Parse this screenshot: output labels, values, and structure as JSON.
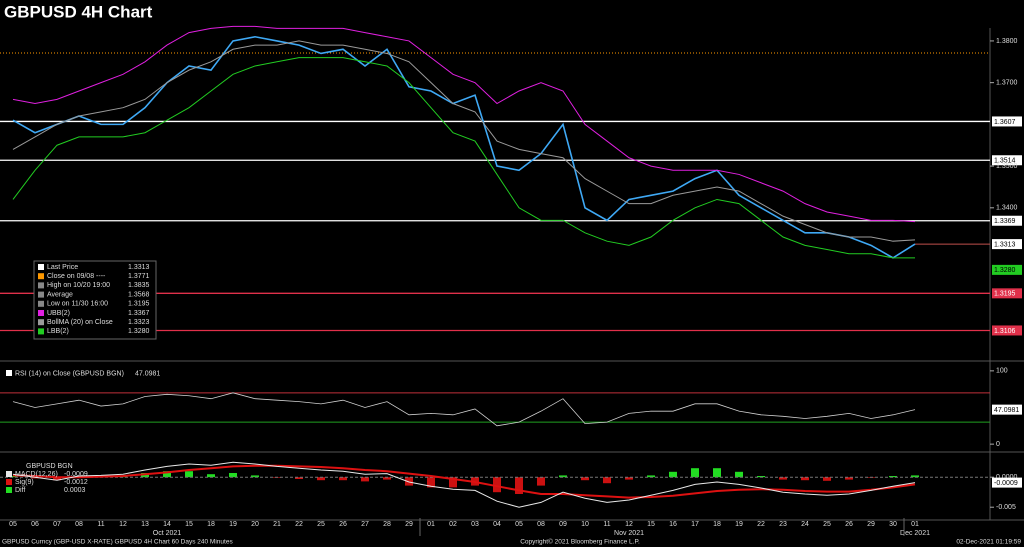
{
  "title": "GBPUSD 4H Chart",
  "footer": {
    "left": "GBPUSD Curncy (GBP-USD X-RATE) GBPUSD 4H Chart 60 Days 240 Minutes",
    "center": "Copyright© 2021 Bloomberg Finance L.P.",
    "right": "02-Dec-2021 01:19:59"
  },
  "chart_data": [
    {
      "type": "line",
      "ylim": [
        1.304,
        1.3831
      ],
      "yticks": [
        {
          "value": 1.38,
          "label": "1.3800"
        },
        {
          "value": 1.37,
          "label": "1.3700"
        },
        {
          "value": 1.35,
          "label": "1.3500"
        },
        {
          "value": 1.34,
          "label": "1.3400"
        }
      ],
      "series": [
        {
          "color": "#3fa9f5",
          "values": [
            1.361,
            1.358,
            1.36,
            1.362,
            1.36,
            1.36,
            1.364,
            1.37,
            1.374,
            1.373,
            1.38,
            1.381,
            1.38,
            1.379,
            1.377,
            1.378,
            1.374,
            1.378,
            1.369,
            1.368,
            1.365,
            1.367,
            1.35,
            1.349,
            1.353,
            1.36,
            1.34,
            1.337,
            1.342,
            1.343,
            1.344,
            1.347,
            1.349,
            1.343,
            1.34,
            1.337,
            1.334,
            1.334,
            1.333,
            1.331,
            1.328,
            1.3313
          ]
        },
        {
          "color": "#e020e0",
          "values": [
            1.366,
            1.365,
            1.366,
            1.368,
            1.37,
            1.372,
            1.375,
            1.379,
            1.382,
            1.383,
            1.3835,
            1.3835,
            1.383,
            1.383,
            1.383,
            1.383,
            1.382,
            1.381,
            1.38,
            1.376,
            1.372,
            1.37,
            1.365,
            1.368,
            1.37,
            1.368,
            1.36,
            1.356,
            1.352,
            1.35,
            1.349,
            1.349,
            1.349,
            1.348,
            1.346,
            1.344,
            1.341,
            1.339,
            1.338,
            1.337,
            1.337,
            1.3367
          ]
        },
        {
          "color": "#9a9a9a",
          "values": [
            1.354,
            1.357,
            1.36,
            1.362,
            1.363,
            1.364,
            1.366,
            1.37,
            1.373,
            1.375,
            1.378,
            1.379,
            1.379,
            1.38,
            1.379,
            1.379,
            1.378,
            1.377,
            1.375,
            1.37,
            1.365,
            1.363,
            1.356,
            1.354,
            1.353,
            1.352,
            1.347,
            1.344,
            1.341,
            1.341,
            1.343,
            1.344,
            1.345,
            1.344,
            1.341,
            1.338,
            1.336,
            1.334,
            1.333,
            1.333,
            1.332,
            1.3323
          ]
        },
        {
          "color": "#22cc22",
          "values": [
            1.342,
            1.349,
            1.355,
            1.357,
            1.357,
            1.357,
            1.358,
            1.361,
            1.364,
            1.368,
            1.372,
            1.374,
            1.375,
            1.376,
            1.376,
            1.376,
            1.375,
            1.374,
            1.37,
            1.364,
            1.358,
            1.356,
            1.348,
            1.34,
            1.337,
            1.337,
            1.334,
            1.332,
            1.331,
            1.333,
            1.337,
            1.34,
            1.342,
            1.341,
            1.337,
            1.333,
            1.331,
            1.33,
            1.329,
            1.329,
            1.328,
            1.328
          ]
        }
      ],
      "levels": [
        1.3607,
        1.3514,
        1.3369,
        1.3106
      ],
      "legend": [
        {
          "name": "Last Price",
          "value": 1.3313,
          "color": "#ffffff"
        },
        {
          "name": "Close on 09/08 ----",
          "value": 1.3771,
          "color": "#ff9900"
        },
        {
          "name": "High on 10/20 19:00",
          "value": 1.3835,
          "color": "#888888"
        },
        {
          "name": "Average",
          "value": 1.3568,
          "color": "#888888"
        },
        {
          "name": "Low on 11/30 16:00",
          "value": 1.3195,
          "color": "#888888"
        },
        {
          "name": "UBB(2)",
          "value": 1.3367,
          "color": "#e020e0"
        },
        {
          "name": "BollMA (20)  on Close",
          "value": 1.3323,
          "color": "#9a9a9a"
        },
        {
          "name": "LBB(2)",
          "value": {
            "value": 1.328,
            "label": "1.3280"
          },
          "color": "#22cc22"
        }
      ]
    },
    {
      "type": "line",
      "label": "RSI (14)  on Close (GBPUSD BGN)",
      "value": 47.0981,
      "ylim": [
        -8,
        108
      ],
      "yticks": [
        100,
        0
      ],
      "levels": [
        70,
        30
      ],
      "series": [
        {
          "color": "#d0d0d0",
          "values": [
            58,
            50,
            55,
            60,
            52,
            55,
            65,
            68,
            66,
            62,
            70,
            62,
            60,
            58,
            55,
            60,
            50,
            58,
            40,
            42,
            40,
            48,
            25,
            30,
            45,
            62,
            28,
            30,
            42,
            45,
            45,
            55,
            55,
            45,
            40,
            38,
            35,
            38,
            42,
            35,
            40,
            47.0981
          ]
        }
      ]
    },
    {
      "type": "macd",
      "header": "GBPUSD BGN",
      "ylim": [
        -0.0068,
        0.0037
      ],
      "yticks": [
        {
          "value": 0,
          "label": "0.0000"
        },
        {
          "value": -0.005,
          "label": "-0.005"
        }
      ],
      "categories": [
        "05",
        "06",
        "07",
        "08",
        "11",
        "12",
        "13",
        "14",
        "15",
        "18",
        "19",
        "20",
        "21",
        "22",
        "25",
        "26",
        "27",
        "28",
        "29",
        "01",
        "02",
        "03",
        "04",
        "05",
        "08",
        "09",
        "10",
        "11",
        "12",
        "15",
        "16",
        "17",
        "18",
        "19",
        "22",
        "23",
        "24",
        "25",
        "26",
        "29",
        "30",
        "01"
      ],
      "months": [
        "Oct 2021",
        "Nov 2021",
        "Dec 2021"
      ],
      "series": [
        {
          "name": "MACD(12,26)",
          "last": -0.0009,
          "color": "#e8e8e8",
          "values": [
            0.0005,
            0,
            -0.0005,
            0.0002,
            0.0003,
            0.0005,
            0.0012,
            0.0018,
            0.0022,
            0.002,
            0.0025,
            0.0022,
            0.0018,
            0.0015,
            0.0012,
            0.001,
            0.0005,
            0.0006,
            -0.0008,
            -0.0015,
            -0.002,
            -0.0022,
            -0.004,
            -0.005,
            -0.0042,
            -0.0025,
            -0.0035,
            -0.0042,
            -0.0038,
            -0.003,
            -0.0022,
            -0.0012,
            -0.0008,
            -0.0012,
            -0.0018,
            -0.0025,
            -0.0028,
            -0.003,
            -0.0028,
            -0.0022,
            -0.0015,
            -0.0009
          ]
        },
        {
          "name": "Sig(9)",
          "last": -0.0012,
          "color": "#dd1111",
          "values": [
            0.0003,
            0.0002,
            0,
            0,
            0.0001,
            0.0002,
            0.0005,
            0.0008,
            0.0012,
            0.0015,
            0.0018,
            0.0019,
            0.0019,
            0.0018,
            0.0017,
            0.0015,
            0.0012,
            0.001,
            0.0006,
            0.0002,
            -0.0003,
            -0.0008,
            -0.0015,
            -0.0022,
            -0.0028,
            -0.0028,
            -0.003,
            -0.0032,
            -0.0034,
            -0.0033,
            -0.0031,
            -0.0027,
            -0.0023,
            -0.0021,
            -0.002,
            -0.0021,
            -0.0023,
            -0.0024,
            -0.0024,
            -0.0021,
            -0.0017,
            -0.0012
          ]
        },
        {
          "name": "Diff",
          "last": 0.0003,
          "color": "#22dd22",
          "values": [
            0.0002,
            -0.0002,
            -0.0005,
            0.0002,
            0.0002,
            0.0003,
            0.0007,
            0.001,
            0.001,
            0.0005,
            0.0007,
            0.0003,
            -0.0001,
            -0.0003,
            -0.0005,
            -0.0005,
            -0.0007,
            -0.0004,
            -0.0014,
            -0.0017,
            -0.0017,
            -0.0014,
            -0.0025,
            -0.0028,
            -0.0014,
            0.0003,
            -0.0005,
            -0.001,
            -0.0004,
            0.0003,
            0.0009,
            0.0015,
            0.0015,
            0.0009,
            0.0002,
            -0.0004,
            -0.0005,
            -0.0006,
            -0.0004,
            -0.0001,
            0.0002,
            0.0003
          ]
        }
      ]
    }
  ]
}
